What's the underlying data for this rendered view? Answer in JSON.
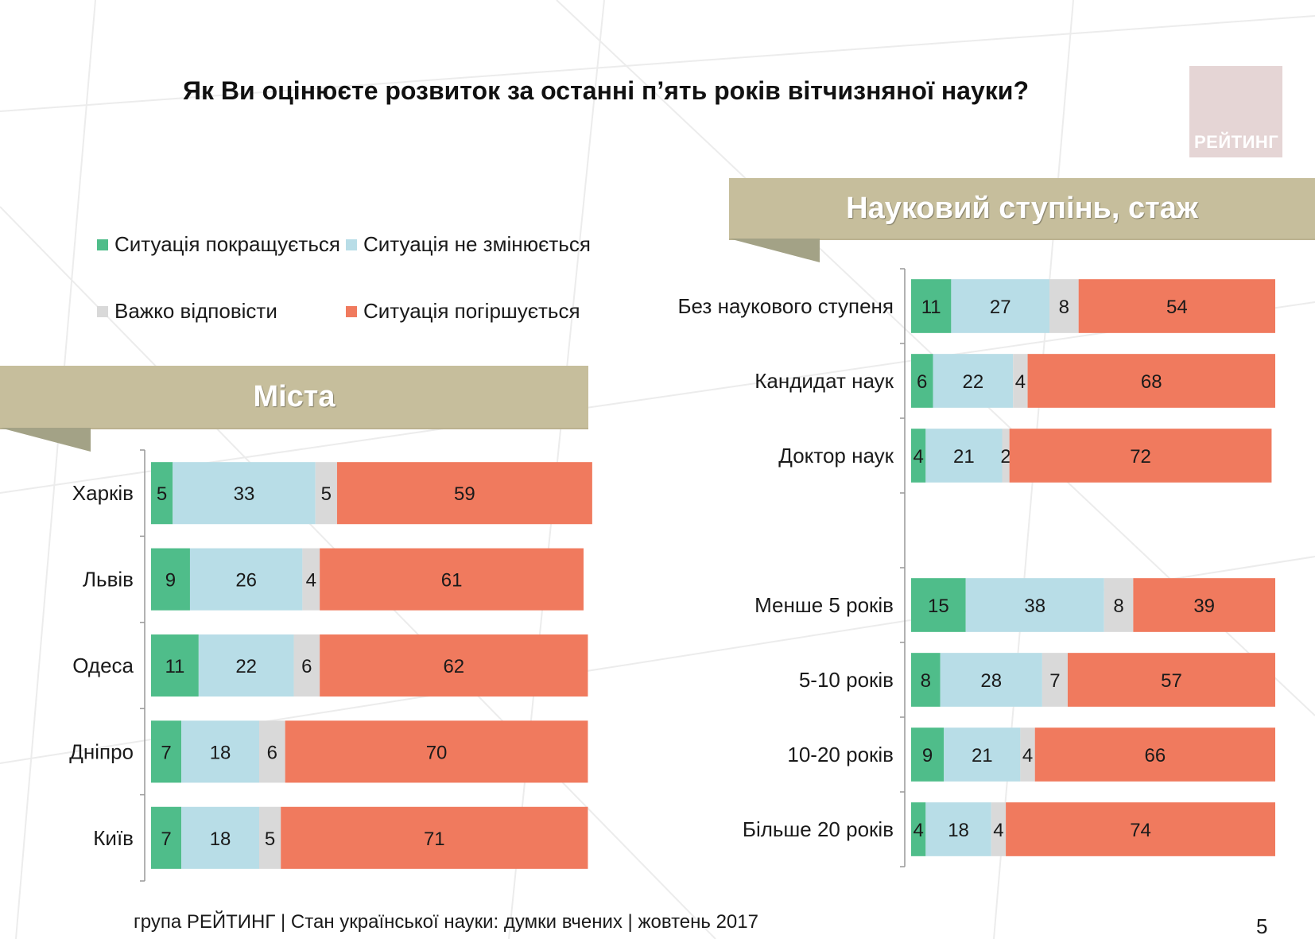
{
  "title": "Як Ви оцінюєте розвиток за останні п’ять років вітчизняної науки?",
  "logo_text": "РЕЙТИНГ",
  "colors": {
    "improving": "#4fbd8a",
    "unchanged": "#b8dde7",
    "hard": "#d9d9d9",
    "worsening": "#f07a5e",
    "banner": "#c6be9c",
    "banner_shadow": "#a3a286"
  },
  "legend": [
    {
      "label": "Ситуація покращується",
      "color": "#4fbd8a"
    },
    {
      "label": "Ситуація не змінюється",
      "color": "#b8dde7"
    },
    {
      "label": "Важко відповісти",
      "color": "#d9d9d9"
    },
    {
      "label": "Ситуація погіршується",
      "color": "#f07a5e"
    }
  ],
  "banners": {
    "left": "Міста",
    "right": "Науковий ступінь, стаж"
  },
  "footer": "група РЕЙТИНГ | Стан української науки: думки вчених | жовтень 2017",
  "page_number": "5",
  "chart_data": [
    {
      "type": "bar",
      "orientation": "horizontal",
      "stacked": true,
      "title": "Міста",
      "categories": [
        "Харків",
        "Львів",
        "Одеса",
        "Дніпро",
        "Київ"
      ],
      "series": [
        {
          "name": "Ситуація покращується",
          "values": [
            5,
            9,
            11,
            7,
            7
          ]
        },
        {
          "name": "Ситуація не змінюється",
          "values": [
            33,
            26,
            22,
            18,
            18
          ]
        },
        {
          "name": "Важко відповісти",
          "values": [
            5,
            4,
            6,
            6,
            5
          ]
        },
        {
          "name": "Ситуація погіршується",
          "values": [
            59,
            61,
            62,
            70,
            71
          ]
        }
      ],
      "xlim": [
        0,
        100
      ]
    },
    {
      "type": "bar",
      "orientation": "horizontal",
      "stacked": true,
      "title": "Науковий ступінь, стаж",
      "categories": [
        "Без наукового ступеня",
        "Кандидат наук",
        "Доктор наук",
        "",
        "Менше 5 років",
        "5-10 років",
        "10-20 років",
        "Більше 20 років"
      ],
      "series": [
        {
          "name": "Ситуація покращується",
          "values": [
            11,
            6,
            4,
            null,
            15,
            8,
            9,
            4
          ]
        },
        {
          "name": "Ситуація не змінюється",
          "values": [
            27,
            22,
            21,
            null,
            38,
            28,
            21,
            18
          ]
        },
        {
          "name": "Важко відповісти",
          "values": [
            8,
            4,
            2,
            null,
            8,
            7,
            4,
            4
          ]
        },
        {
          "name": "Ситуація погіршується",
          "values": [
            54,
            68,
            72,
            null,
            39,
            57,
            66,
            74
          ]
        }
      ],
      "xlim": [
        0,
        100
      ]
    }
  ]
}
